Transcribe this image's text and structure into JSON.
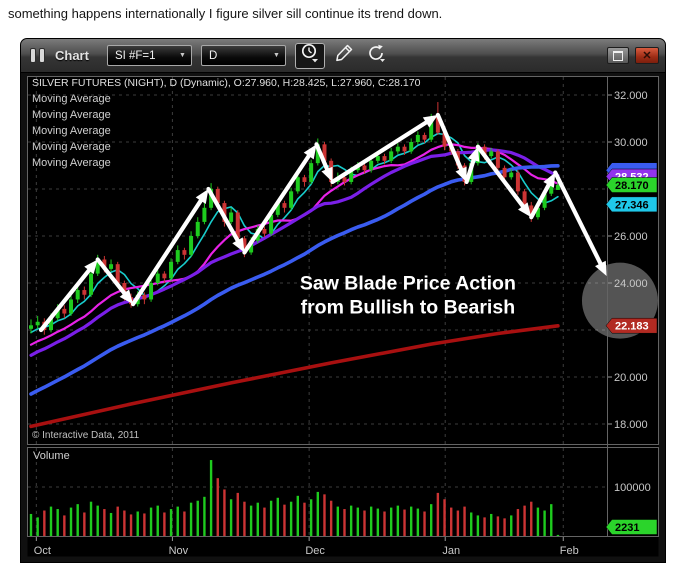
{
  "page": {
    "note": "something happens internationally I figure silver sill continue its trend down."
  },
  "window": {
    "title": "Chart",
    "symbol_select": {
      "value": "SI #F=1"
    },
    "period_select": {
      "value": "D"
    },
    "controls": {
      "restore": "restore-window",
      "close": "close-window"
    }
  },
  "chart": {
    "header": "SILVER FUTURES (NIGHT), D (Dynamic), O:27.960, H:28.425, L:27.960, C:28.170",
    "ma_labels": [
      "Moving Average",
      "Moving Average",
      "Moving Average",
      "Moving Average",
      "Moving Average"
    ],
    "copyright": "© Interactive Data, 2011",
    "volume_label": "Volume"
  },
  "chart_data": {
    "type": "candlestick",
    "title": "SILVER FUTURES (NIGHT), D (Dynamic)",
    "ohlc_header": {
      "open": 27.96,
      "high": 28.425,
      "low": 27.96,
      "close": 28.17
    },
    "x_ticks": [
      {
        "label": "Oct",
        "idx": 0.8
      },
      {
        "label": "Nov",
        "idx": 21.2
      },
      {
        "label": "Dec",
        "idx": 41.7
      },
      {
        "label": "Jan",
        "idx": 62.1
      },
      {
        "label": "Feb",
        "idx": 79.8
      }
    ],
    "y_ticks": [
      {
        "label": "32.000",
        "value": 32
      },
      {
        "label": "30.000",
        "value": 30
      },
      {
        "label": "26.000",
        "value": 26
      },
      {
        "label": "24.000",
        "value": 24
      },
      {
        "label": "20.000",
        "value": 20
      },
      {
        "label": "18.000",
        "value": 18
      }
    ],
    "grid_prices": [
      18,
      20,
      22,
      24,
      26,
      28,
      30,
      32
    ],
    "price_range": [
      17.15,
      32.68
    ],
    "price_tags": [
      {
        "label": "",
        "value": 28.8,
        "color": "#3a5cf0",
        "text_color": "#ffffff",
        "name": "blue-ma-tag"
      },
      {
        "label": "28.532",
        "value": 28.532,
        "color": "#9233ee",
        "text_color": "#ffffff",
        "name": "purple-ma-tag"
      },
      {
        "label": "28.170",
        "value": 28.17,
        "color": "#2bd42b",
        "text_color": "#000000",
        "name": "last-price-tag"
      },
      {
        "label": "27.346",
        "value": 27.346,
        "color": "#1fc8ea",
        "text_color": "#000000",
        "name": "cyan-ma-tag"
      },
      {
        "label": "22.183",
        "value": 22.183,
        "color": "#b22a22",
        "text_color": "#ffffff",
        "name": "red-ma-tag"
      }
    ],
    "volume_axis": {
      "gridline_value": 100000,
      "gridline_label": "100000",
      "tag": {
        "label": "2231",
        "value": 2231,
        "color": "#2bd42b",
        "text_color": "#000000"
      }
    },
    "candles": [
      [
        22.05,
        22.45,
        21.85,
        22.2,
        45000
      ],
      [
        22.2,
        22.6,
        22.05,
        22.35,
        38000
      ],
      [
        22.35,
        22.5,
        21.8,
        22.0,
        52000
      ],
      [
        22.0,
        22.7,
        21.9,
        22.5,
        60000
      ],
      [
        22.5,
        23.1,
        22.4,
        22.9,
        55000
      ],
      [
        22.9,
        23.05,
        22.5,
        22.7,
        42000
      ],
      [
        22.7,
        23.5,
        22.6,
        23.3,
        58000
      ],
      [
        23.3,
        23.9,
        23.15,
        23.7,
        65000
      ],
      [
        23.7,
        23.85,
        23.3,
        23.5,
        48000
      ],
      [
        23.5,
        24.6,
        23.4,
        24.4,
        70000
      ],
      [
        24.4,
        25.2,
        24.3,
        25.0,
        62000
      ],
      [
        25.0,
        25.15,
        24.45,
        24.6,
        55000
      ],
      [
        24.6,
        25.0,
        24.5,
        24.8,
        47000
      ],
      [
        24.8,
        24.9,
        23.85,
        24.0,
        60000
      ],
      [
        24.0,
        24.1,
        23.25,
        23.4,
        52000
      ],
      [
        23.4,
        23.55,
        22.95,
        23.1,
        44000
      ],
      [
        23.1,
        23.65,
        23.0,
        23.5,
        50000
      ],
      [
        23.5,
        23.6,
        23.1,
        23.3,
        46000
      ],
      [
        23.3,
        24.15,
        23.2,
        24.0,
        58000
      ],
      [
        24.0,
        24.55,
        23.9,
        24.4,
        62000
      ],
      [
        24.4,
        24.5,
        24.0,
        24.2,
        48000
      ],
      [
        24.2,
        25.05,
        24.1,
        24.9,
        55000
      ],
      [
        24.9,
        25.6,
        24.8,
        25.4,
        60000
      ],
      [
        25.4,
        25.5,
        25.0,
        25.2,
        50000
      ],
      [
        25.2,
        26.2,
        25.1,
        26.0,
        68000
      ],
      [
        26.0,
        26.8,
        25.9,
        26.6,
        72000
      ],
      [
        26.6,
        27.4,
        26.5,
        27.2,
        80000
      ],
      [
        27.2,
        28.25,
        27.1,
        28.0,
        155000
      ],
      [
        28.0,
        28.1,
        27.2,
        27.4,
        118000
      ],
      [
        27.4,
        27.5,
        26.4,
        26.6,
        95000
      ],
      [
        26.6,
        27.2,
        26.5,
        27.0,
        75000
      ],
      [
        27.0,
        27.1,
        25.75,
        25.9,
        88000
      ],
      [
        25.9,
        26.0,
        25.1,
        25.3,
        70000
      ],
      [
        25.3,
        25.95,
        25.2,
        25.8,
        62000
      ],
      [
        25.8,
        26.45,
        25.7,
        26.3,
        68000
      ],
      [
        26.3,
        26.4,
        25.95,
        26.1,
        58000
      ],
      [
        26.1,
        27.05,
        26.0,
        26.9,
        72000
      ],
      [
        26.9,
        27.55,
        26.8,
        27.4,
        78000
      ],
      [
        27.4,
        27.5,
        27.0,
        27.2,
        64000
      ],
      [
        27.2,
        28.05,
        27.1,
        27.9,
        70000
      ],
      [
        27.9,
        28.65,
        27.8,
        28.5,
        82000
      ],
      [
        28.5,
        28.6,
        28.1,
        28.3,
        68000
      ],
      [
        28.3,
        29.25,
        28.2,
        29.1,
        75000
      ],
      [
        29.1,
        30.15,
        29.0,
        29.9,
        90000
      ],
      [
        29.9,
        30.0,
        29.0,
        29.2,
        85000
      ],
      [
        29.2,
        29.3,
        28.1,
        28.3,
        72000
      ],
      [
        28.3,
        28.7,
        28.2,
        28.5,
        60000
      ],
      [
        28.5,
        28.6,
        28.15,
        28.3,
        55000
      ],
      [
        28.3,
        28.95,
        28.2,
        28.8,
        62000
      ],
      [
        28.8,
        29.15,
        28.7,
        29.0,
        58000
      ],
      [
        29.0,
        29.1,
        28.65,
        28.8,
        52000
      ],
      [
        28.8,
        29.35,
        28.7,
        29.2,
        60000
      ],
      [
        29.2,
        29.55,
        29.1,
        29.4,
        56000
      ],
      [
        29.4,
        29.5,
        29.05,
        29.2,
        50000
      ],
      [
        29.2,
        29.75,
        29.1,
        29.6,
        58000
      ],
      [
        29.6,
        29.95,
        29.5,
        29.8,
        62000
      ],
      [
        29.8,
        29.9,
        29.45,
        29.6,
        54000
      ],
      [
        29.6,
        30.15,
        29.5,
        30.0,
        60000
      ],
      [
        30.0,
        30.45,
        29.9,
        30.3,
        56000
      ],
      [
        30.3,
        30.4,
        29.95,
        30.1,
        50000
      ],
      [
        30.1,
        31.2,
        30.0,
        31.0,
        65000
      ],
      [
        31.2,
        31.7,
        30.3,
        30.4,
        88000
      ],
      [
        30.4,
        30.55,
        29.65,
        29.8,
        75000
      ],
      [
        29.8,
        30.0,
        29.45,
        29.6,
        58000
      ],
      [
        29.6,
        29.7,
        28.85,
        29.0,
        52000
      ],
      [
        29.0,
        29.1,
        28.15,
        28.3,
        60000
      ],
      [
        28.3,
        29.25,
        28.2,
        29.1,
        48000
      ],
      [
        29.1,
        29.95,
        29.0,
        29.8,
        42000
      ],
      [
        29.8,
        29.9,
        29.25,
        29.4,
        38000
      ],
      [
        29.4,
        29.75,
        29.3,
        29.6,
        45000
      ],
      [
        29.6,
        29.7,
        28.75,
        28.9,
        40000
      ],
      [
        28.9,
        29.0,
        28.35,
        28.5,
        36000
      ],
      [
        28.5,
        28.85,
        28.4,
        28.7,
        42000
      ],
      [
        28.7,
        28.8,
        27.75,
        27.9,
        55000
      ],
      [
        27.9,
        28.0,
        27.1,
        27.3,
        62000
      ],
      [
        27.3,
        27.45,
        26.6,
        26.8,
        70000
      ],
      [
        26.8,
        27.35,
        26.7,
        27.2,
        58000
      ],
      [
        27.2,
        27.95,
        27.1,
        27.8,
        52000
      ],
      [
        27.8,
        28.55,
        27.7,
        28.4,
        65000
      ],
      [
        27.96,
        28.425,
        27.96,
        28.17,
        2231
      ]
    ],
    "candle_colors": {
      "up": "#1ecc1e",
      "down": "#cc3434"
    },
    "ma_lines": [
      {
        "name": "Moving Average",
        "color": "#18cccc",
        "width": 1.6,
        "window": 5
      },
      {
        "name": "Moving Average",
        "color": "#e822e8",
        "width": 2.2,
        "window": 12
      },
      {
        "name": "Moving Average",
        "color": "#7a1fe8",
        "width": 3.2,
        "window": 18
      },
      {
        "name": "Moving Average",
        "color": "#3a5cf0",
        "width": 3.6,
        "window": 40
      },
      {
        "name": "Moving Average",
        "color": "#a81010",
        "width": 3.6,
        "points": [
          [
            0,
            17.9
          ],
          [
            15,
            18.85
          ],
          [
            30,
            19.75
          ],
          [
            45,
            20.6
          ],
          [
            60,
            21.4
          ],
          [
            70,
            21.85
          ],
          [
            79,
            22.18
          ]
        ]
      }
    ],
    "sawblade_annotation": {
      "color": "#ffffff",
      "points": [
        [
          1.5,
          22.0
        ],
        [
          10,
          25.0
        ],
        [
          15.3,
          23.1
        ],
        [
          26.6,
          28.0
        ],
        [
          32,
          25.3
        ],
        [
          42.8,
          29.9
        ],
        [
          45.2,
          28.3
        ],
        [
          61,
          31.15
        ],
        [
          65.3,
          28.3
        ],
        [
          67,
          29.8
        ],
        [
          75,
          26.8
        ],
        [
          78.6,
          28.7
        ],
        [
          86.3,
          24.3
        ]
      ]
    },
    "projection_circle": {
      "idx": 88.3,
      "price": 23.25,
      "radius_px": 38,
      "color": "#c9c9c9",
      "opacity": 0.42
    },
    "annotation_text": {
      "lines": [
        "Saw Blade Price Action",
        "from Bullish to Bearish"
      ],
      "idx": 56.5,
      "price": 23.72,
      "color": "#ffffff"
    }
  }
}
